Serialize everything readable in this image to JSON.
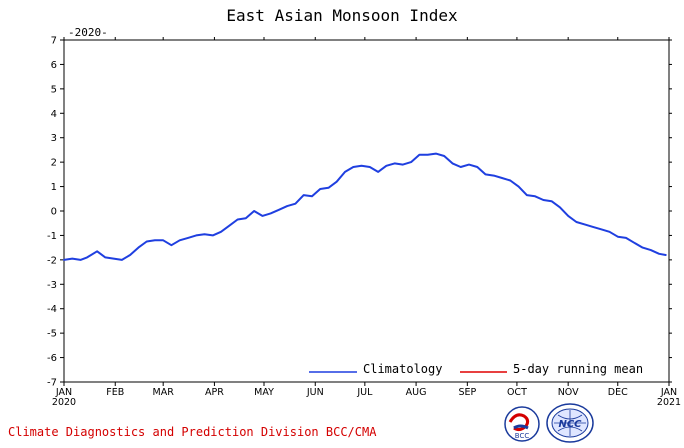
{
  "chart_data": {
    "type": "line",
    "title": "East Asian Monsoon Index",
    "subtitle": "-2020-",
    "ylim": [
      -7,
      7
    ],
    "yticks": [
      -7,
      -6,
      -5,
      -4,
      -3,
      -2,
      -1,
      0,
      1,
      2,
      3,
      4,
      5,
      6,
      7
    ],
    "xlim": [
      0,
      366
    ],
    "xticks": [
      {
        "day": 0,
        "label": "JAN",
        "sublabel": "2020"
      },
      {
        "day": 31,
        "label": "FEB"
      },
      {
        "day": 60,
        "label": "MAR"
      },
      {
        "day": 91,
        "label": "APR"
      },
      {
        "day": 121,
        "label": "MAY"
      },
      {
        "day": 152,
        "label": "JUN"
      },
      {
        "day": 182,
        "label": "JUL"
      },
      {
        "day": 213,
        "label": "AUG"
      },
      {
        "day": 244,
        "label": "SEP"
      },
      {
        "day": 274,
        "label": "OCT"
      },
      {
        "day": 305,
        "label": "NOV"
      },
      {
        "day": 335,
        "label": "DEC"
      },
      {
        "day": 366,
        "label": "JAN",
        "sublabel": "2021"
      }
    ],
    "legend_position": "bottom-right",
    "series": [
      {
        "name": "Climatology",
        "color": "#1f3fe0",
        "x": [
          0,
          5,
          10,
          14,
          20,
          25,
          30,
          35,
          40,
          45,
          50,
          55,
          60,
          65,
          70,
          75,
          80,
          85,
          90,
          95,
          100,
          105,
          110,
          115,
          120,
          125,
          130,
          135,
          140,
          145,
          150,
          155,
          160,
          165,
          170,
          175,
          180,
          185,
          190,
          195,
          200,
          205,
          210,
          215,
          220,
          225,
          230,
          235,
          240,
          245,
          250,
          255,
          260,
          265,
          270,
          275,
          280,
          285,
          290,
          295,
          300,
          305,
          310,
          315,
          320,
          325,
          330,
          335,
          340,
          345,
          350,
          355,
          360,
          364
        ],
        "values": [
          -2.0,
          -1.95,
          -2.0,
          -1.9,
          -1.65,
          -1.9,
          -1.95,
          -2.0,
          -1.8,
          -1.5,
          -1.25,
          -1.2,
          -1.2,
          -1.4,
          -1.2,
          -1.1,
          -1.0,
          -0.95,
          -1.0,
          -0.85,
          -0.6,
          -0.35,
          -0.3,
          0.0,
          -0.2,
          -0.1,
          0.05,
          0.2,
          0.3,
          0.65,
          0.6,
          0.9,
          0.95,
          1.2,
          1.6,
          1.8,
          1.85,
          1.8,
          1.6,
          1.85,
          1.95,
          1.9,
          2.0,
          2.3,
          2.3,
          2.35,
          2.25,
          1.95,
          1.8,
          1.9,
          1.8,
          1.5,
          1.45,
          1.35,
          1.25,
          1.0,
          0.65,
          0.6,
          0.45,
          0.4,
          0.15,
          -0.2,
          -0.45,
          -0.55,
          -0.65,
          -0.75,
          -0.85,
          -1.05,
          -1.1,
          -1.3,
          -1.5,
          -1.6,
          -1.75,
          -1.8
        ]
      },
      {
        "name": "5-day running mean",
        "color": "#e00000",
        "x": [],
        "values": []
      }
    ],
    "legend": [
      "Climatology",
      "5-day running mean"
    ]
  },
  "footer": {
    "text": "Climate Diagnostics and Prediction Division  BCC/CMA",
    "logo_left_text": "BCC",
    "logo_right_text": "NCC"
  }
}
